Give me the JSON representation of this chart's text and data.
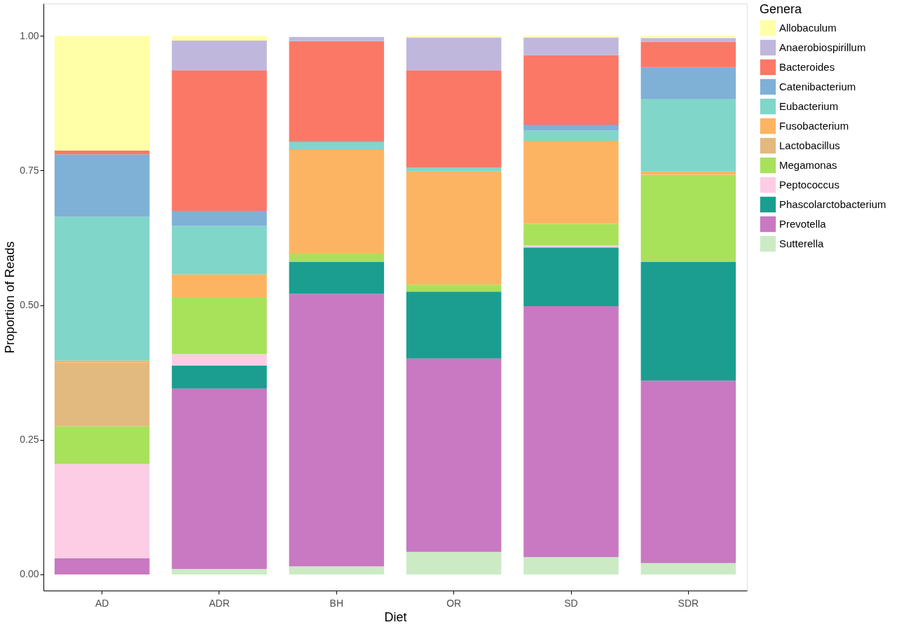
{
  "chart_data": {
    "type": "bar",
    "stacked": true,
    "xlabel": "Diet",
    "ylabel": "Proportion of Reads",
    "legend_title": "Genera",
    "legend": "right",
    "grid": false,
    "categories": [
      "AD",
      "ADR",
      "BH",
      "OR",
      "SD",
      "SDR"
    ],
    "ylim": [
      -0.03,
      1.06
    ],
    "yticks": [
      {
        "value": 0,
        "label": "0.00"
      },
      {
        "value": 0.25,
        "label": "0.25"
      },
      {
        "value": 0.5,
        "label": "0.50"
      },
      {
        "value": 0.75,
        "label": "0.75"
      },
      {
        "value": 1,
        "label": "1.00"
      }
    ],
    "series": [
      {
        "name": "Sutterella",
        "color": "#ccebc5",
        "values": [
          0,
          0.01,
          0.015,
          0.042,
          0.032,
          0.021
        ]
      },
      {
        "name": "Prevotella",
        "color": "#c879c1",
        "values": [
          0.03,
          0.335,
          0.506,
          0.359,
          0.466,
          0.339
        ]
      },
      {
        "name": "Phascolarctobacterium",
        "color": "#1b9e8f",
        "values": [
          0,
          0.043,
          0.059,
          0.124,
          0.109,
          0.22
        ]
      },
      {
        "name": "Peptococcus",
        "color": "#fccde5",
        "values": [
          0.175,
          0.021,
          0,
          0,
          0.004,
          0
        ]
      },
      {
        "name": "Megamonas",
        "color": "#a8e15a",
        "values": [
          0.07,
          0.106,
          0.017,
          0.013,
          0.04,
          0.162
        ]
      },
      {
        "name": "Lactobacillus",
        "color": "#e2b97f",
        "values": [
          0.118,
          0,
          0,
          0,
          0,
          0
        ]
      },
      {
        "name": "Fusobacterium",
        "color": "#fdb462",
        "values": [
          0.004,
          0.042,
          0.191,
          0.21,
          0.154,
          0.006
        ]
      },
      {
        "name": "Eubacterium",
        "color": "#80d6c8",
        "values": [
          0.267,
          0.09,
          0.014,
          0.007,
          0.019,
          0.134
        ]
      },
      {
        "name": "Catenibacterium",
        "color": "#7fb0d6",
        "values": [
          0.116,
          0.028,
          0.003,
          0,
          0.011,
          0.06
        ]
      },
      {
        "name": "Bacteroides",
        "color": "#fb7866",
        "values": [
          0.007,
          0.261,
          0.185,
          0.181,
          0.129,
          0.047
        ]
      },
      {
        "name": "Anaerobiospirillum",
        "color": "#c0b7dc",
        "values": [
          0,
          0.055,
          0.008,
          0.061,
          0.033,
          0.007
        ]
      },
      {
        "name": "Allobaculum",
        "color": "#ffffa8",
        "values": [
          0.213,
          0.009,
          null,
          0.003,
          0.003,
          0.004
        ]
      }
    ]
  }
}
